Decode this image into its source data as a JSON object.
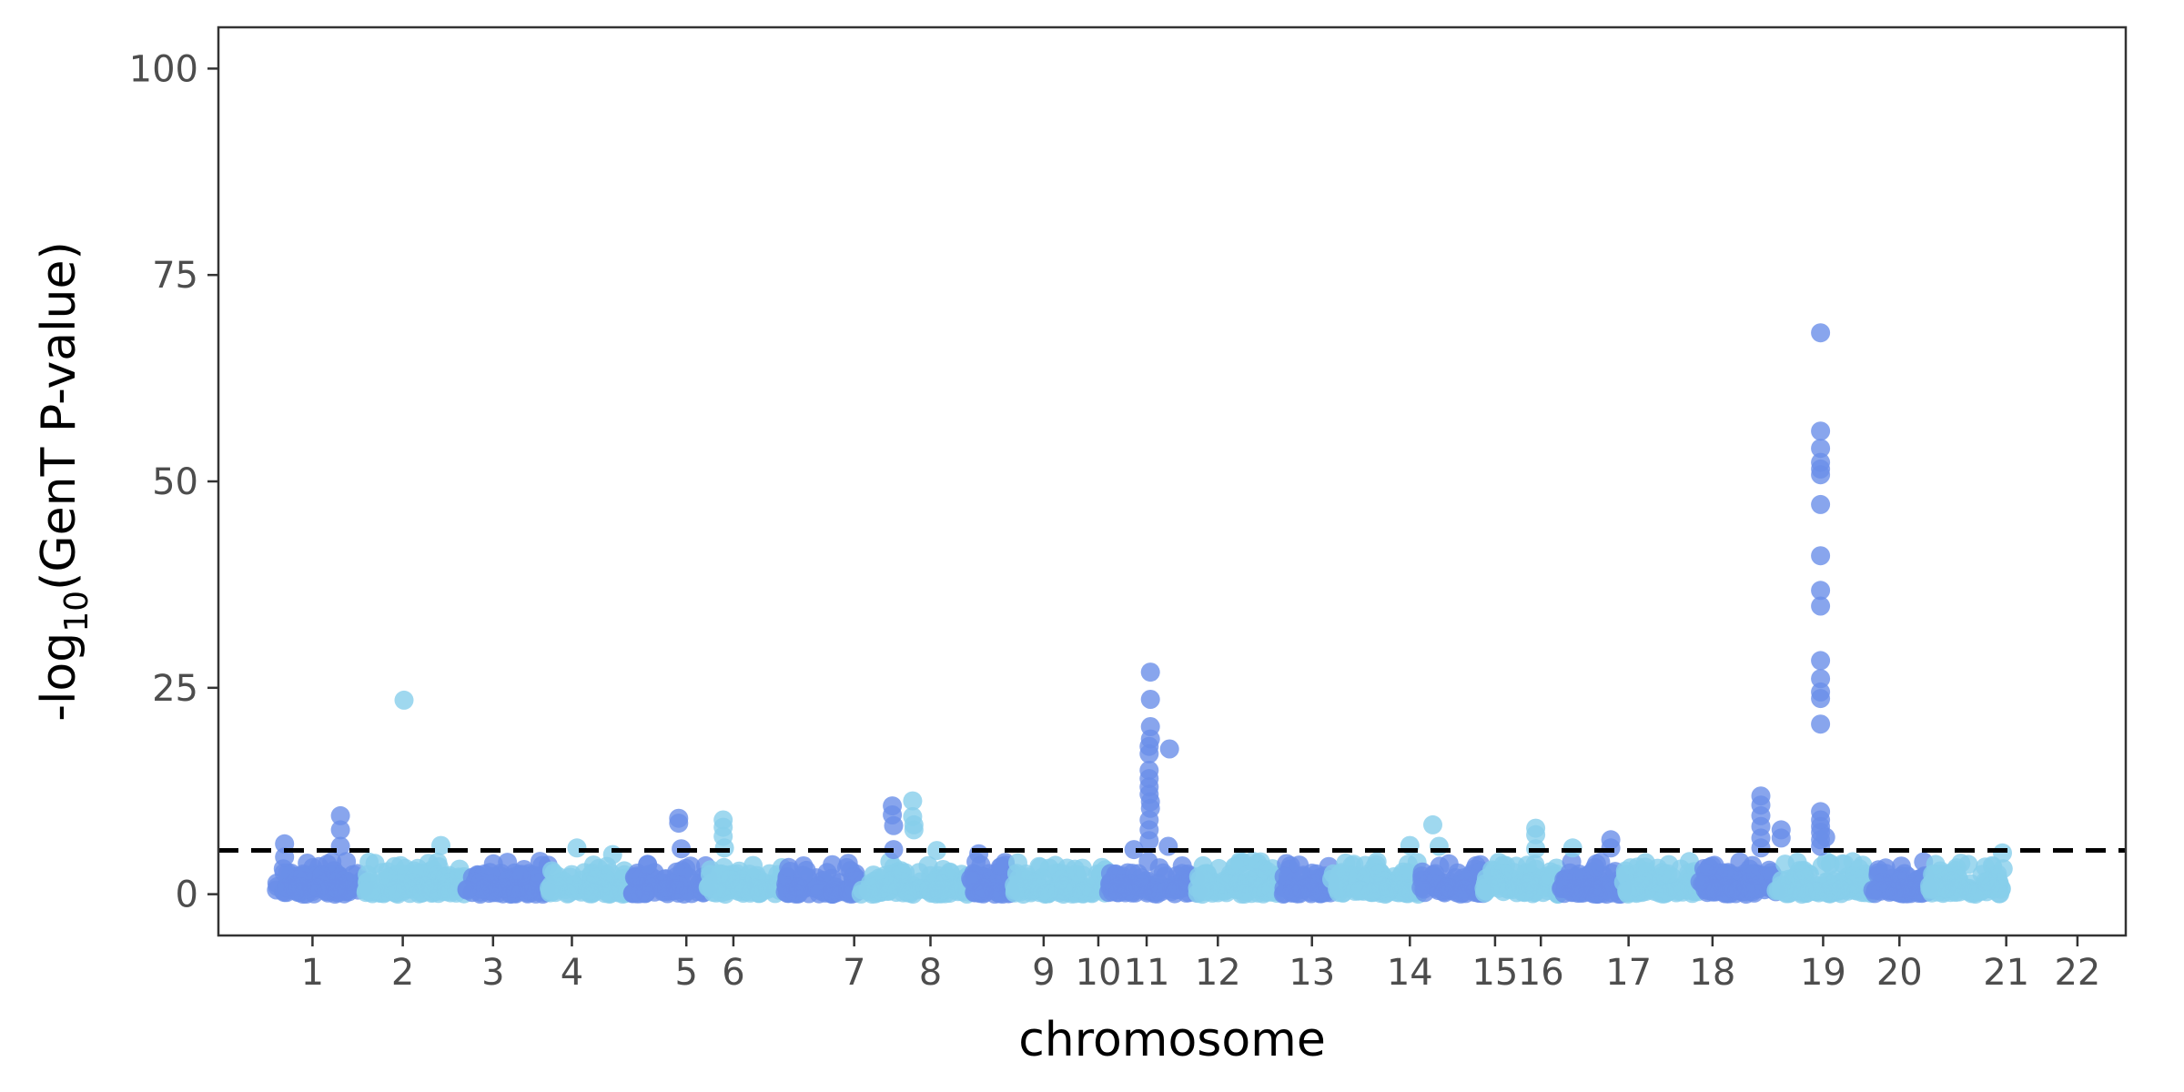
{
  "chart_data": {
    "type": "scatter",
    "title": "",
    "xlabel": "chromosome",
    "ylabel": "-log10(GenT P-value)",
    "ylabel_parts": {
      "before": "-log",
      "subscript": "10",
      "after": "(GenT P-value)"
    },
    "ylim": [
      -5,
      105
    ],
    "yticks": [
      0,
      25,
      50,
      75,
      100
    ],
    "grid": false,
    "legend": "none",
    "threshold": 5.3,
    "colors": {
      "dark": "#6A8FE8",
      "light": "#87CEEB",
      "threshold": "#000000"
    },
    "chromosomes": [
      {
        "label": "1",
        "start": 45,
        "end": 115,
        "tick": 74,
        "color": "dark"
      },
      {
        "label": "2",
        "start": 115,
        "end": 195,
        "tick": 145,
        "color": "light"
      },
      {
        "label": "3",
        "start": 195,
        "end": 260,
        "tick": 216,
        "color": "dark"
      },
      {
        "label": "4",
        "start": 260,
        "end": 325,
        "tick": 278,
        "color": "light"
      },
      {
        "label": "5",
        "start": 325,
        "end": 385,
        "tick": 368,
        "color": "dark"
      },
      {
        "label": "6",
        "start": 385,
        "end": 445,
        "tick": 405,
        "color": "light"
      },
      {
        "label": "7",
        "start": 445,
        "end": 505,
        "tick": 500,
        "color": "dark"
      },
      {
        "label": "8",
        "start": 505,
        "end": 590,
        "tick": 560,
        "color": "light"
      },
      {
        "label": "9",
        "start": 590,
        "end": 625,
        "tick": 649,
        "color": "dark"
      },
      {
        "label": "10",
        "start": 625,
        "end": 700,
        "tick": 692,
        "color": "light"
      },
      {
        "label": "11",
        "start": 700,
        "end": 770,
        "tick": 730,
        "color": "dark"
      },
      {
        "label": "12",
        "start": 770,
        "end": 835,
        "tick": 786,
        "color": "light"
      },
      {
        "label": "13",
        "start": 835,
        "end": 875,
        "tick": 860,
        "color": "dark"
      },
      {
        "label": "14",
        "start": 875,
        "end": 945,
        "tick": 937,
        "color": "light"
      },
      {
        "label": "15",
        "start": 945,
        "end": 995,
        "tick": 1004,
        "color": "dark"
      },
      {
        "label": "16",
        "start": 995,
        "end": 1055,
        "tick": 1040,
        "color": "light"
      },
      {
        "label": "17",
        "start": 1055,
        "end": 1105,
        "tick": 1109,
        "color": "dark"
      },
      {
        "label": "18",
        "start": 1105,
        "end": 1165,
        "tick": 1175,
        "color": "light"
      },
      {
        "label": "19",
        "start": 1165,
        "end": 1225,
        "tick": 1262,
        "color": "dark"
      },
      {
        "label": "20",
        "start": 1225,
        "end": 1300,
        "tick": 1322,
        "color": "light"
      },
      {
        "label": "21",
        "start": 1300,
        "end": 1345,
        "tick": 1406,
        "color": "dark"
      },
      {
        "label": "22",
        "start": 1345,
        "end": 1405,
        "tick": 1462,
        "color": "light"
      }
    ],
    "notable_points": [
      {
        "x": 52,
        "y": 6.1,
        "color": "dark"
      },
      {
        "x": 52,
        "y": 4.5,
        "color": "dark"
      },
      {
        "x": 96,
        "y": 9.5,
        "color": "dark"
      },
      {
        "x": 96,
        "y": 7.8,
        "color": "dark"
      },
      {
        "x": 96,
        "y": 5.8,
        "color": "dark"
      },
      {
        "x": 146,
        "y": 23.5,
        "color": "light"
      },
      {
        "x": 175,
        "y": 5.9,
        "color": "light"
      },
      {
        "x": 282,
        "y": 5.6,
        "color": "light"
      },
      {
        "x": 310,
        "y": 4.8,
        "color": "light"
      },
      {
        "x": 362,
        "y": 9.2,
        "color": "dark"
      },
      {
        "x": 362,
        "y": 8.6,
        "color": "dark"
      },
      {
        "x": 364,
        "y": 5.5,
        "color": "dark"
      },
      {
        "x": 397,
        "y": 9.0,
        "color": "light"
      },
      {
        "x": 397,
        "y": 8.1,
        "color": "light"
      },
      {
        "x": 397,
        "y": 7.0,
        "color": "light"
      },
      {
        "x": 398,
        "y": 5.6,
        "color": "light"
      },
      {
        "x": 530,
        "y": 10.7,
        "color": "dark"
      },
      {
        "x": 530,
        "y": 9.6,
        "color": "dark"
      },
      {
        "x": 531,
        "y": 8.3,
        "color": "dark"
      },
      {
        "x": 531,
        "y": 5.4,
        "color": "dark"
      },
      {
        "x": 546,
        "y": 11.3,
        "color": "light"
      },
      {
        "x": 546,
        "y": 9.4,
        "color": "light"
      },
      {
        "x": 547,
        "y": 8.4,
        "color": "light"
      },
      {
        "x": 547,
        "y": 7.8,
        "color": "light"
      },
      {
        "x": 565,
        "y": 5.3,
        "color": "light"
      },
      {
        "x": 598,
        "y": 4.9,
        "color": "dark"
      },
      {
        "x": 720,
        "y": 5.4,
        "color": "dark"
      },
      {
        "x": 733,
        "y": 26.9,
        "color": "dark"
      },
      {
        "x": 733,
        "y": 23.6,
        "color": "dark"
      },
      {
        "x": 733,
        "y": 20.3,
        "color": "dark"
      },
      {
        "x": 733,
        "y": 18.8,
        "color": "dark"
      },
      {
        "x": 732,
        "y": 17.9,
        "color": "dark"
      },
      {
        "x": 732,
        "y": 17.0,
        "color": "dark"
      },
      {
        "x": 732,
        "y": 15.0,
        "color": "dark"
      },
      {
        "x": 732,
        "y": 14.0,
        "color": "dark"
      },
      {
        "x": 732,
        "y": 13.0,
        "color": "dark"
      },
      {
        "x": 732,
        "y": 12.1,
        "color": "dark"
      },
      {
        "x": 733,
        "y": 11.2,
        "color": "dark"
      },
      {
        "x": 733,
        "y": 10.4,
        "color": "dark"
      },
      {
        "x": 732,
        "y": 9.0,
        "color": "dark"
      },
      {
        "x": 732,
        "y": 7.8,
        "color": "dark"
      },
      {
        "x": 732,
        "y": 6.5,
        "color": "dark"
      },
      {
        "x": 748,
        "y": 17.6,
        "color": "dark"
      },
      {
        "x": 747,
        "y": 5.8,
        "color": "dark"
      },
      {
        "x": 937,
        "y": 5.9,
        "color": "light"
      },
      {
        "x": 955,
        "y": 8.4,
        "color": "light"
      },
      {
        "x": 960,
        "y": 5.8,
        "color": "light"
      },
      {
        "x": 1036,
        "y": 8.0,
        "color": "light"
      },
      {
        "x": 1036,
        "y": 7.2,
        "color": "light"
      },
      {
        "x": 1036,
        "y": 5.5,
        "color": "light"
      },
      {
        "x": 1065,
        "y": 5.6,
        "color": "light"
      },
      {
        "x": 1095,
        "y": 6.6,
        "color": "dark"
      },
      {
        "x": 1095,
        "y": 5.6,
        "color": "dark"
      },
      {
        "x": 1213,
        "y": 11.9,
        "color": "dark"
      },
      {
        "x": 1213,
        "y": 10.8,
        "color": "dark"
      },
      {
        "x": 1213,
        "y": 9.5,
        "color": "dark"
      },
      {
        "x": 1213,
        "y": 8.2,
        "color": "dark"
      },
      {
        "x": 1213,
        "y": 6.8,
        "color": "dark"
      },
      {
        "x": 1213,
        "y": 5.6,
        "color": "dark"
      },
      {
        "x": 1229,
        "y": 7.8,
        "color": "dark"
      },
      {
        "x": 1229,
        "y": 6.8,
        "color": "dark"
      },
      {
        "x": 1260,
        "y": 68.0,
        "color": "dark"
      },
      {
        "x": 1260,
        "y": 56.1,
        "color": "dark"
      },
      {
        "x": 1260,
        "y": 54.0,
        "color": "dark"
      },
      {
        "x": 1260,
        "y": 52.3,
        "color": "dark"
      },
      {
        "x": 1260,
        "y": 51.5,
        "color": "dark"
      },
      {
        "x": 1260,
        "y": 50.8,
        "color": "dark"
      },
      {
        "x": 1260,
        "y": 47.2,
        "color": "dark"
      },
      {
        "x": 1260,
        "y": 41.0,
        "color": "dark"
      },
      {
        "x": 1260,
        "y": 36.8,
        "color": "dark"
      },
      {
        "x": 1260,
        "y": 34.9,
        "color": "dark"
      },
      {
        "x": 1260,
        "y": 28.3,
        "color": "dark"
      },
      {
        "x": 1260,
        "y": 26.1,
        "color": "dark"
      },
      {
        "x": 1260,
        "y": 24.5,
        "color": "dark"
      },
      {
        "x": 1260,
        "y": 23.7,
        "color": "dark"
      },
      {
        "x": 1260,
        "y": 20.6,
        "color": "dark"
      },
      {
        "x": 1260,
        "y": 10.0,
        "color": "dark"
      },
      {
        "x": 1260,
        "y": 9.0,
        "color": "dark"
      },
      {
        "x": 1260,
        "y": 8.2,
        "color": "dark"
      },
      {
        "x": 1260,
        "y": 7.5,
        "color": "dark"
      },
      {
        "x": 1260,
        "y": 6.6,
        "color": "dark"
      },
      {
        "x": 1260,
        "y": 5.8,
        "color": "dark"
      },
      {
        "x": 1264,
        "y": 6.9,
        "color": "dark"
      },
      {
        "x": 1403,
        "y": 5.0,
        "color": "light"
      }
    ]
  }
}
